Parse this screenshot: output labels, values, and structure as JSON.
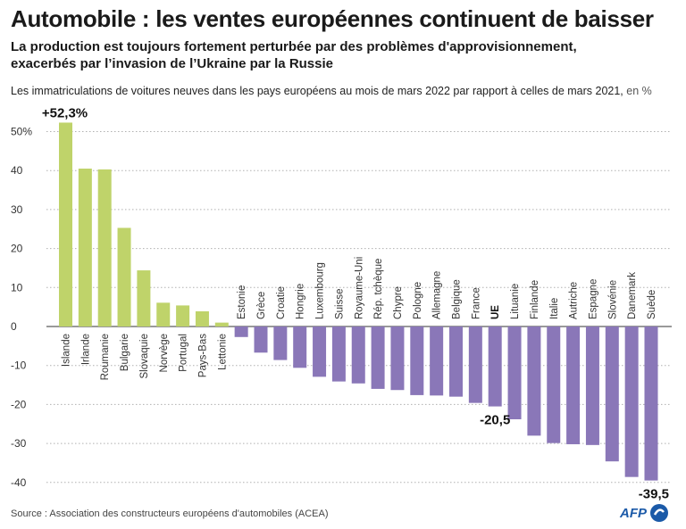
{
  "header": {
    "title": "Automobile : les ventes européennes continuent de baisser",
    "subtitle_line1": "La production est toujours fortement perturbée par des problèmes d'approvisionnement,",
    "subtitle_line2": "exacerbés par l’invasion de l’Ukraine par la Russie",
    "description": "Les immatriculations de voitures neuves dans les pays européens au mois de mars 2022 par rapport à celles de mars 2021,",
    "description_unit": " en %"
  },
  "footer": {
    "source": "Source : Association des constructeurs européens d'automobiles (ACEA)",
    "logo_text": "AFP"
  },
  "colors": {
    "positive": "#bfd36a",
    "negative": "#8a77b8",
    "grid": "#b0b0b0",
    "zero_line": "#333333",
    "logo": "#1b5aa8"
  },
  "chart_data": {
    "type": "bar",
    "title": "Automobile : les ventes européennes continuent de baisser",
    "xlabel": "",
    "ylabel": "en %",
    "ylim": [
      -42,
      54
    ],
    "yticks": [
      -40,
      -30,
      -20,
      -10,
      0,
      10,
      20,
      30,
      40,
      50
    ],
    "ytick_labels": [
      "-40",
      "-30",
      "-20",
      "-10",
      "0",
      "10",
      "20",
      "30",
      "40",
      "50%"
    ],
    "grid": true,
    "categories": [
      "Islande",
      "Irlande",
      "Roumanie",
      "Bulgarie",
      "Slovaquie",
      "Norvège",
      "Portugal",
      "Pays-Bas",
      "Lettonie",
      "Estonie",
      "Grèce",
      "Croatie",
      "Hongrie",
      "Luxembourg",
      "Suisse",
      "Royaume-Uni",
      "Rép. tchèque",
      "Chypre",
      "Pologne",
      "Allemagne",
      "Belgique",
      "France",
      "UE",
      "Lituanie",
      "Finlande",
      "Italie",
      "Autriche",
      "Espagne",
      "Slovénie",
      "Danemark",
      "Suède"
    ],
    "values": [
      52.3,
      40.5,
      40.3,
      25.3,
      14.4,
      6.1,
      5.4,
      3.9,
      1.0,
      -2.7,
      -6.7,
      -8.6,
      -10.6,
      -12.9,
      -14.1,
      -14.6,
      -16.0,
      -16.3,
      -17.6,
      -17.7,
      -18.0,
      -19.6,
      -20.5,
      -23.8,
      -28.0,
      -29.9,
      -30.2,
      -30.4,
      -34.6,
      -38.6,
      -39.5
    ],
    "highlight": "UE",
    "annotations": [
      {
        "category": "Islande",
        "text": "+52,3%"
      },
      {
        "category": "UE",
        "text": "-20,5"
      },
      {
        "category": "Suède",
        "text": "-39,5"
      }
    ]
  }
}
